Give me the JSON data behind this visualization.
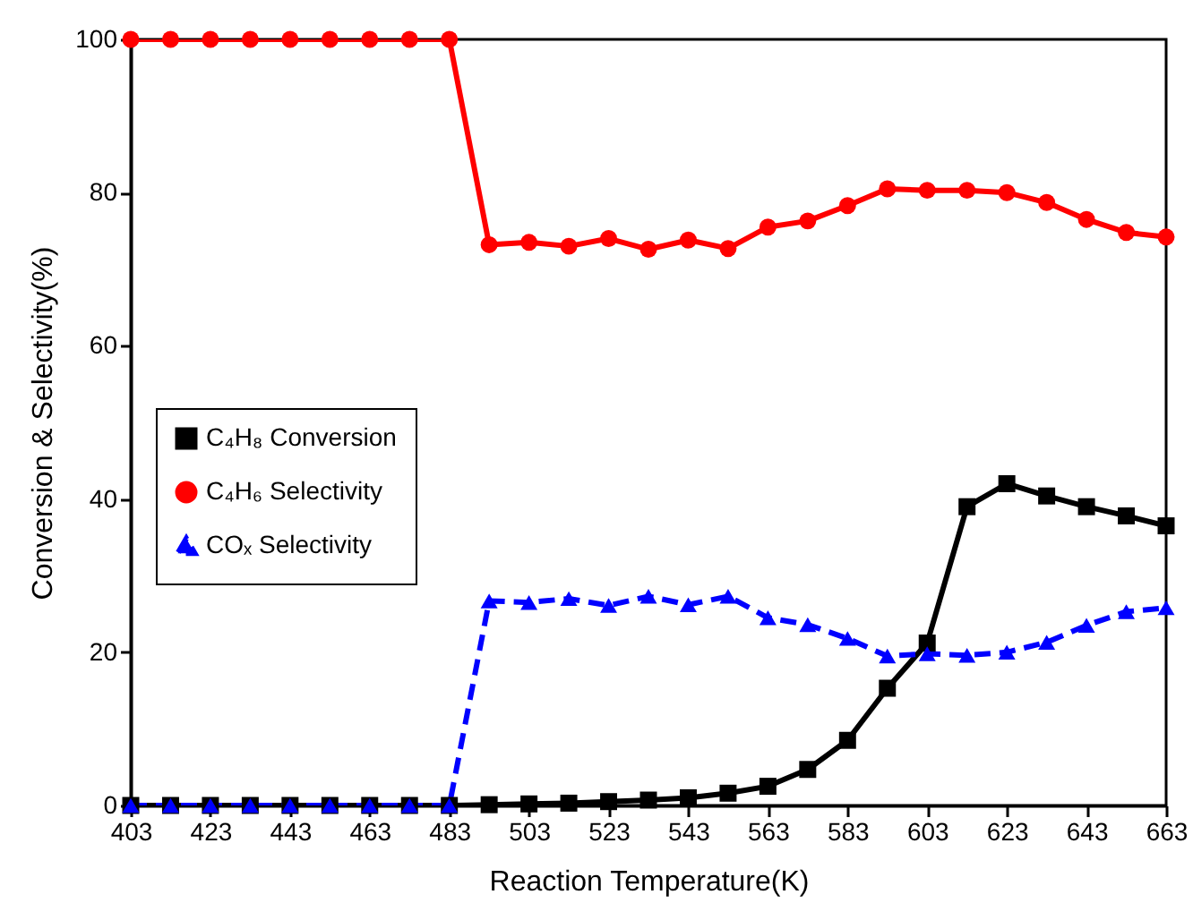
{
  "chart_data": {
    "type": "line",
    "xlabel": "Reaction Temperature(K)",
    "ylabel": "Conversion & Selectivity(%)",
    "x": [
      403,
      413,
      423,
      433,
      443,
      453,
      463,
      473,
      483,
      493,
      503,
      513,
      523,
      533,
      543,
      553,
      563,
      573,
      583,
      593,
      603,
      613,
      623,
      633,
      643,
      653,
      663
    ],
    "xlim": [
      403,
      663
    ],
    "xticks": [
      403,
      423,
      443,
      463,
      483,
      503,
      523,
      543,
      563,
      583,
      603,
      623,
      643,
      663
    ],
    "ylim": [
      0,
      100
    ],
    "yticks": [
      0,
      20,
      40,
      60,
      80,
      100
    ],
    "grid": false,
    "legend": "left",
    "series": [
      {
        "name": "C₄H₈ Conversion",
        "color": "#000000",
        "marker": "square",
        "line_style": "solid",
        "values": [
          0,
          0,
          0,
          0,
          0,
          0,
          0,
          0,
          0,
          0.1,
          0.2,
          0.3,
          0.5,
          0.7,
          1.0,
          1.6,
          2.5,
          4.7,
          8.5,
          15.3,
          21.2,
          39,
          42,
          40.4,
          39,
          37.8,
          36.5
        ]
      },
      {
        "name": "C₄H₆ Selectivity",
        "color": "#ff0000",
        "marker": "circle",
        "line_style": "solid",
        "values": [
          100,
          100,
          100,
          100,
          100,
          100,
          100,
          100,
          100,
          73.2,
          73.5,
          73,
          74,
          72.6,
          73.8,
          72.7,
          75.5,
          76.3,
          78.3,
          80.5,
          80.3,
          80.3,
          80,
          78.7,
          76.5,
          74.8,
          74.2
        ]
      },
      {
        "name": "COₓ Selectivity",
        "color": "#0000ff",
        "marker": "triangle",
        "line_style": "dashed",
        "values": [
          0,
          0,
          0,
          0,
          0,
          0,
          0,
          0,
          0,
          26.7,
          26.5,
          27,
          26.1,
          27.3,
          26.2,
          27.3,
          24.5,
          23.6,
          21.8,
          19.5,
          19.8,
          19.6,
          20,
          21.3,
          23.5,
          25.3,
          25.8
        ]
      }
    ]
  }
}
